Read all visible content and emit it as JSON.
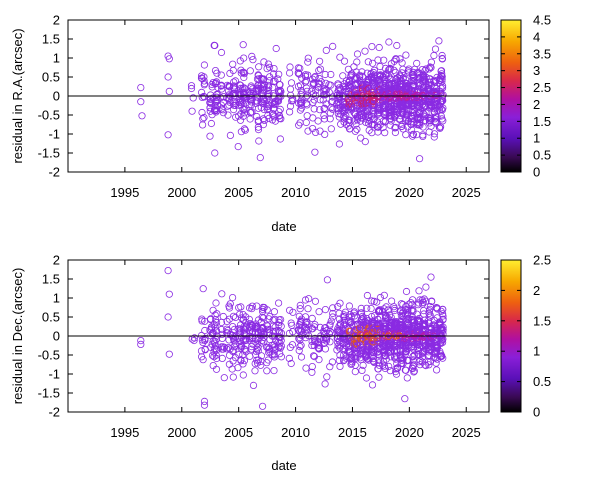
{
  "chart_data": [
    {
      "type": "scatter",
      "title": "",
      "xlabel": "date",
      "ylabel": "residual in R.A.(arcsec)",
      "xlim": [
        1990,
        2027
      ],
      "ylim": [
        -2,
        2
      ],
      "xticks": [
        "1995",
        "2000",
        "2005",
        "2010",
        "2015",
        "2020",
        "2025"
      ],
      "yticks": [
        "-2",
        "-1.5",
        "-1",
        "-0.5",
        "0",
        "0.5",
        "1",
        "1.5",
        "2"
      ],
      "colorbar": {
        "range": [
          0,
          4.5
        ],
        "ticks": [
          "0",
          "0.5",
          "1",
          "1.5",
          "2",
          "2.5",
          "3",
          "3.5",
          "4",
          "4.5"
        ]
      },
      "zero_line": 0,
      "sample_points": [
        {
          "x": 1996.4,
          "y": 0.22
        },
        {
          "x": 1996.4,
          "y": -0.15
        },
        {
          "x": 1996.5,
          "y": -0.52
        },
        {
          "x": 1998.8,
          "y": 1.05
        },
        {
          "x": 1998.9,
          "y": 0.98
        },
        {
          "x": 1998.8,
          "y": 0.5
        },
        {
          "x": 1998.9,
          "y": 0.12
        },
        {
          "x": 1998.8,
          "y": -1.02
        },
        {
          "x": 2001.0,
          "y": -0.05
        },
        {
          "x": 2002.9,
          "y": 1.33
        },
        {
          "x": 2002.9,
          "y": -1.5
        },
        {
          "x": 2005.4,
          "y": 1.35
        },
        {
          "x": 2006.9,
          "y": -1.62
        },
        {
          "x": 2008.3,
          "y": 1.25
        },
        {
          "x": 2011.7,
          "y": -1.48
        },
        {
          "x": 2012.7,
          "y": 1.2
        },
        {
          "x": 2013.9,
          "y": 1.02
        },
        {
          "x": 2016.1,
          "y": 1.18
        },
        {
          "x": 2018.2,
          "y": 1.42
        },
        {
          "x": 2020.9,
          "y": -1.65
        },
        {
          "x": 2022.6,
          "y": 1.45
        }
      ]
    },
    {
      "type": "scatter",
      "title": "",
      "xlabel": "date",
      "ylabel": "residual in Dec.(arcsec)",
      "xlim": [
        1990,
        2027
      ],
      "ylim": [
        -2,
        2
      ],
      "xticks": [
        "1995",
        "2000",
        "2005",
        "2010",
        "2015",
        "2020",
        "2025"
      ],
      "yticks": [
        "-2",
        "-1.5",
        "-1",
        "-0.5",
        "0",
        "0.5",
        "1",
        "1.5",
        "2"
      ],
      "colorbar": {
        "range": [
          0,
          2.5
        ],
        "ticks": [
          "0",
          "0.5",
          "1",
          "1.5",
          "2",
          "2.5"
        ]
      },
      "zero_line": 0,
      "sample_points": [
        {
          "x": 1996.4,
          "y": -0.12
        },
        {
          "x": 1996.4,
          "y": -0.22
        },
        {
          "x": 1998.8,
          "y": 1.72
        },
        {
          "x": 1998.9,
          "y": 1.1
        },
        {
          "x": 1998.8,
          "y": 0.5
        },
        {
          "x": 1998.9,
          "y": -0.48
        },
        {
          "x": 2002.0,
          "y": -1.72
        },
        {
          "x": 2002.0,
          "y": -1.82
        },
        {
          "x": 2006.3,
          "y": -1.3
        },
        {
          "x": 2007.1,
          "y": -1.85
        },
        {
          "x": 2012.8,
          "y": 1.48
        },
        {
          "x": 2019.6,
          "y": -1.65
        },
        {
          "x": 2021.9,
          "y": 1.55
        }
      ]
    }
  ]
}
